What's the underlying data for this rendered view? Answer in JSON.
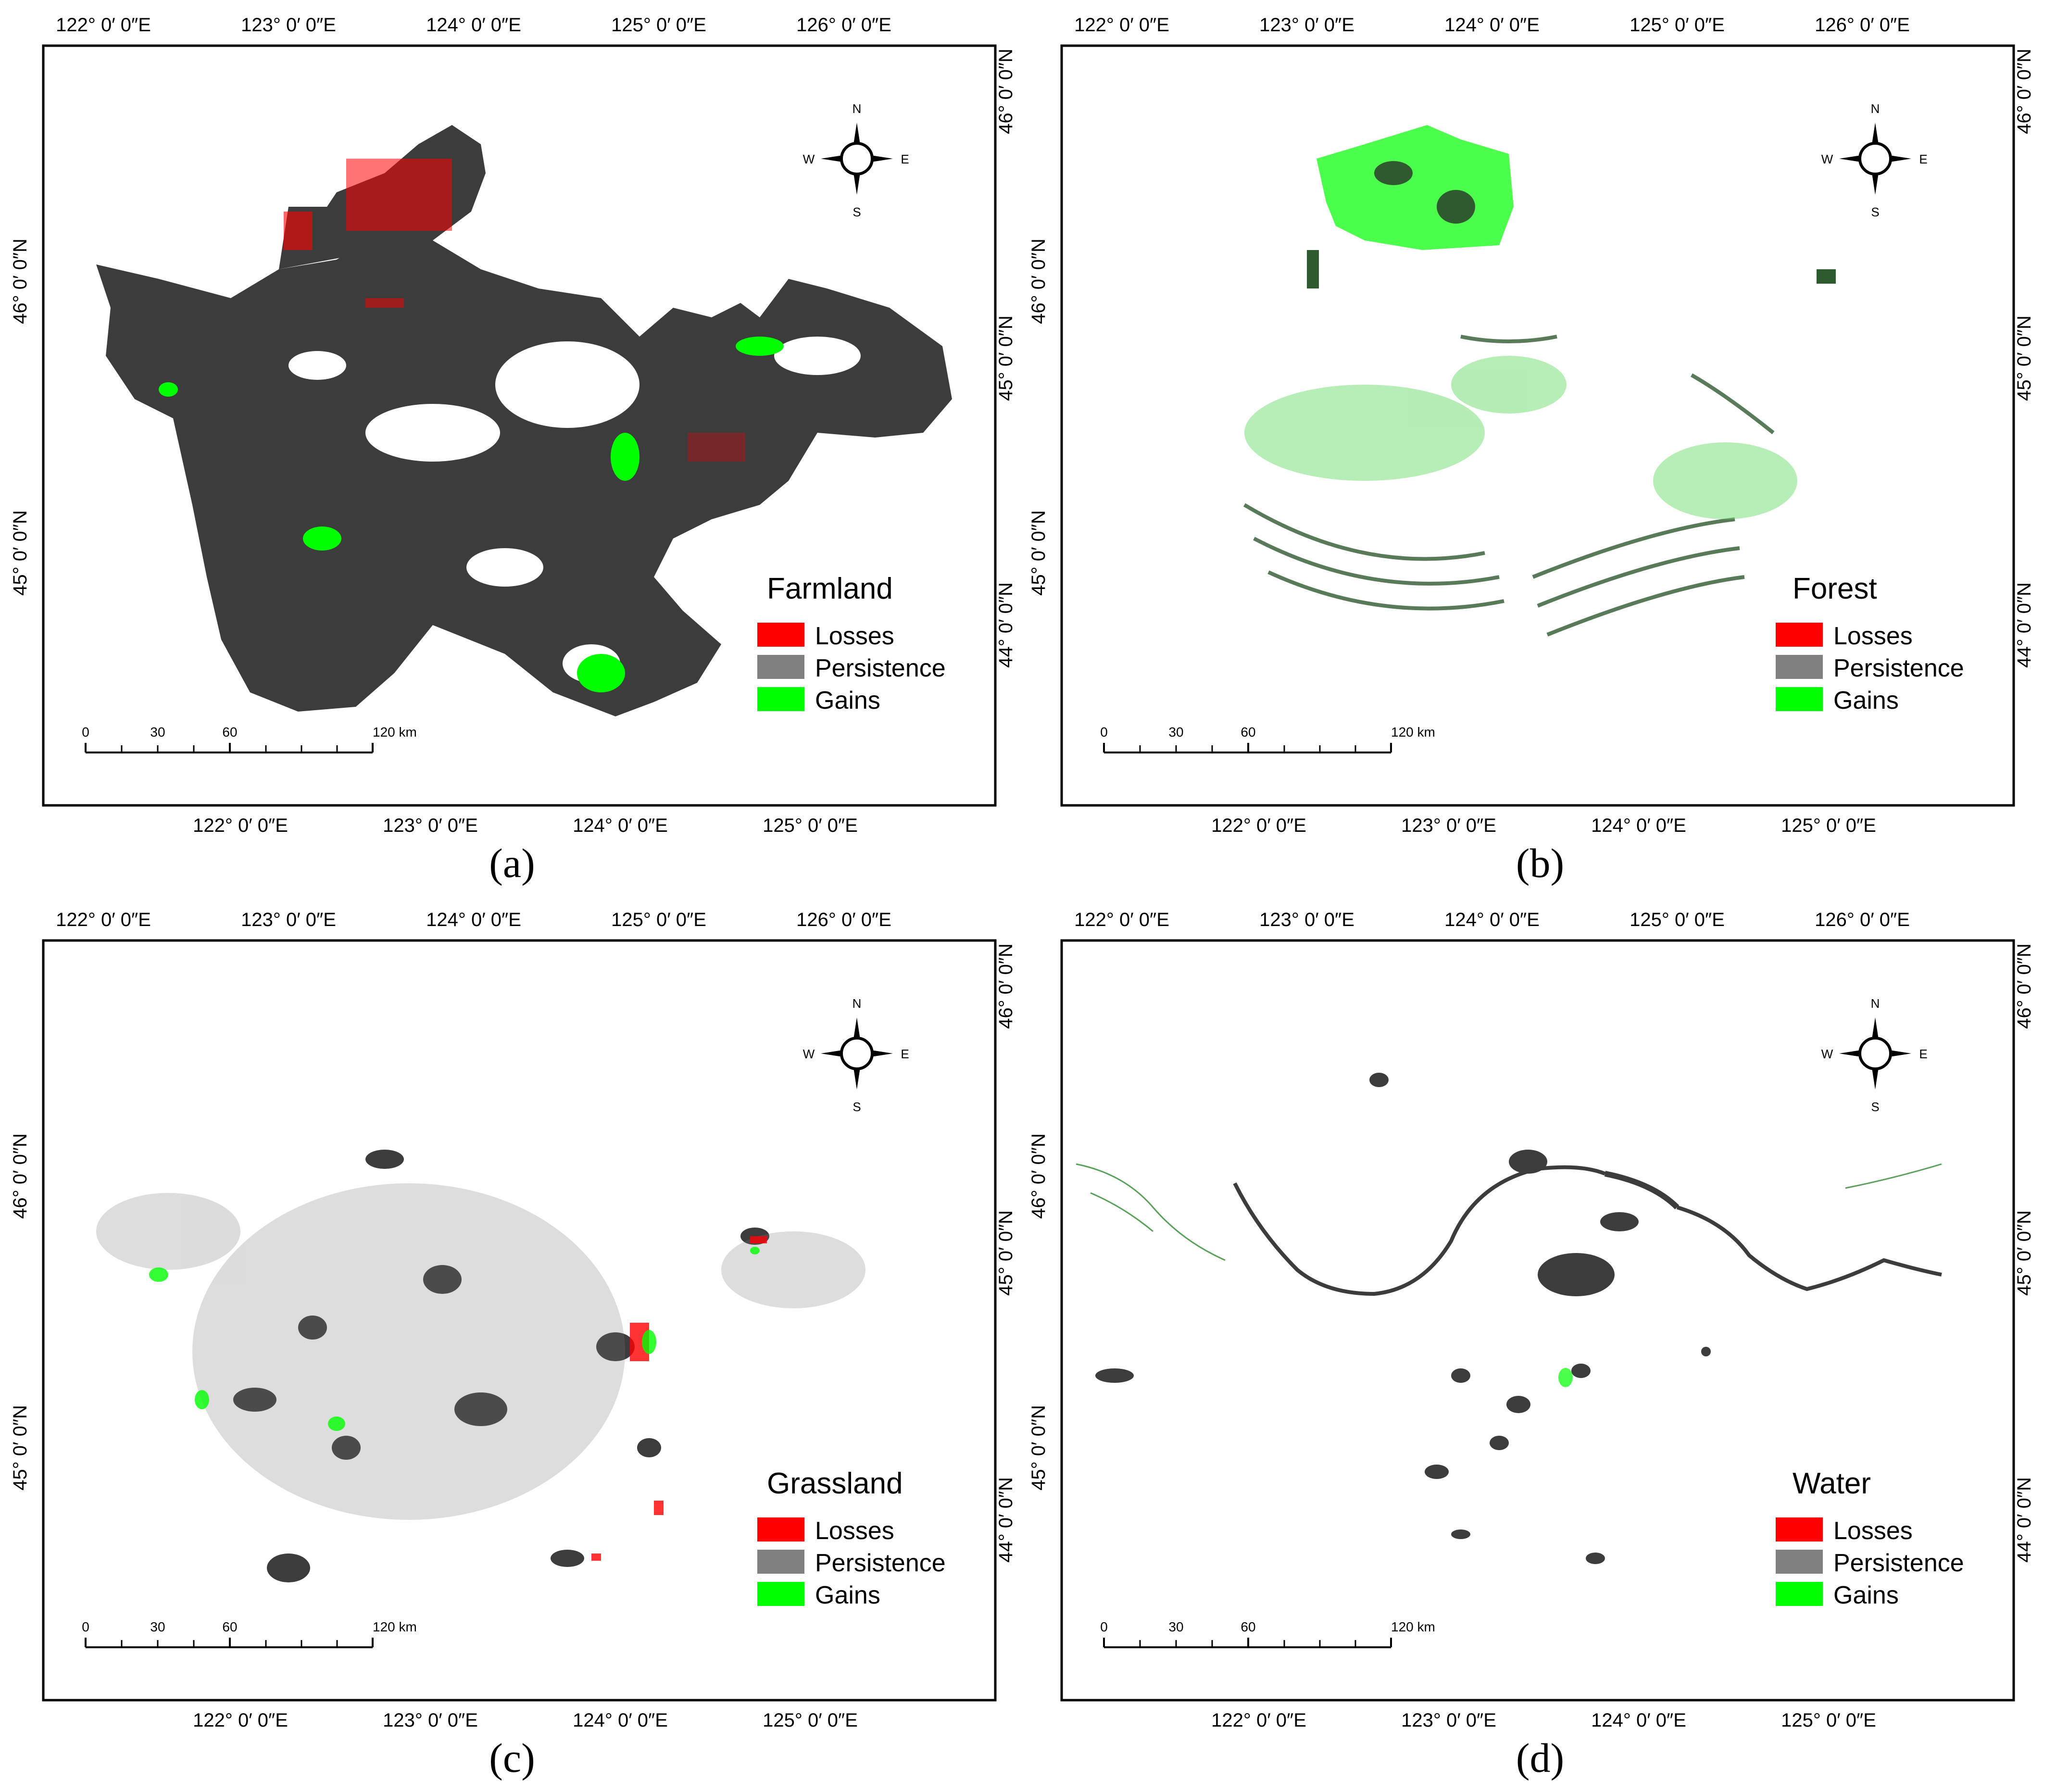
{
  "panels": [
    {
      "id": "a",
      "label": "(a)",
      "title": "Farmland",
      "top_lon_labels": [
        "122° 0′ 0″E",
        "123° 0′ 0″E",
        "124° 0′ 0″E",
        "125° 0′ 0″E",
        "126° 0′ 0″E"
      ],
      "bottom_lon_labels": [
        "122° 0′ 0″E",
        "123° 0′ 0″E",
        "124° 0′ 0″E",
        "125° 0′ 0″E"
      ],
      "left_lat_labels": [
        "46° 0′ 0″N",
        "45° 0′ 0″N"
      ],
      "right_lat_labels": [
        "46° 0′ 0″N",
        "45° 0′ 0″N",
        "44° 0′ 0″N"
      ]
    },
    {
      "id": "b",
      "label": "(b)",
      "title": "Forest",
      "top_lon_labels": [
        "122° 0′ 0″E",
        "123° 0′ 0″E",
        "124° 0′ 0″E",
        "125° 0′ 0″E",
        "126° 0′ 0″E"
      ],
      "bottom_lon_labels": [
        "122° 0′ 0″E",
        "123° 0′ 0″E",
        "124° 0′ 0″E",
        "125° 0′ 0″E"
      ],
      "left_lat_labels": [
        "46° 0′ 0″N",
        "45° 0′ 0″N"
      ],
      "right_lat_labels": [
        "46° 0′ 0″N",
        "45° 0′ 0″N",
        "44° 0′ 0″N"
      ]
    },
    {
      "id": "c",
      "label": "(c)",
      "title": "Grassland",
      "top_lon_labels": [
        "122° 0′ 0″E",
        "123° 0′ 0″E",
        "124° 0′ 0″E",
        "125° 0′ 0″E",
        "126° 0′ 0″E"
      ],
      "bottom_lon_labels": [
        "122° 0′ 0″E",
        "123° 0′ 0″E",
        "124° 0′ 0″E",
        "125° 0′ 0″E"
      ],
      "left_lat_labels": [
        "46° 0′ 0″N",
        "45° 0′ 0″N"
      ],
      "right_lat_labels": [
        "46° 0′ 0″N",
        "45° 0′ 0″N",
        "44° 0′ 0″N"
      ]
    },
    {
      "id": "d",
      "label": "(d)",
      "title": "Water",
      "top_lon_labels": [
        "122° 0′ 0″E",
        "123° 0′ 0″E",
        "124° 0′ 0″E",
        "125° 0′ 0″E",
        "126° 0′ 0″E"
      ],
      "bottom_lon_labels": [
        "122° 0′ 0″E",
        "123° 0′ 0″E",
        "124° 0′ 0″E",
        "125° 0′ 0″E"
      ],
      "left_lat_labels": [
        "46° 0′ 0″N",
        "45° 0′ 0″N"
      ],
      "right_lat_labels": [
        "46° 0′ 0″N",
        "45° 0′ 0″N",
        "44° 0′ 0″N"
      ]
    }
  ],
  "legend": [
    {
      "label": "Losses",
      "color": "#ff0000"
    },
    {
      "label": "Persistence",
      "color": "#808080"
    },
    {
      "label": "Gains",
      "color": "#00ff00"
    }
  ],
  "compass": {
    "n": "N",
    "s": "S",
    "e": "E",
    "w": "W"
  },
  "scale_bar": {
    "ticks": [
      "0",
      "30",
      "60",
      "120 km"
    ]
  },
  "colors": {
    "persistence_dark": "#3c3c3c",
    "loss": "#ff0000",
    "gain": "#00ff00",
    "forest": "#2f6b2f"
  }
}
